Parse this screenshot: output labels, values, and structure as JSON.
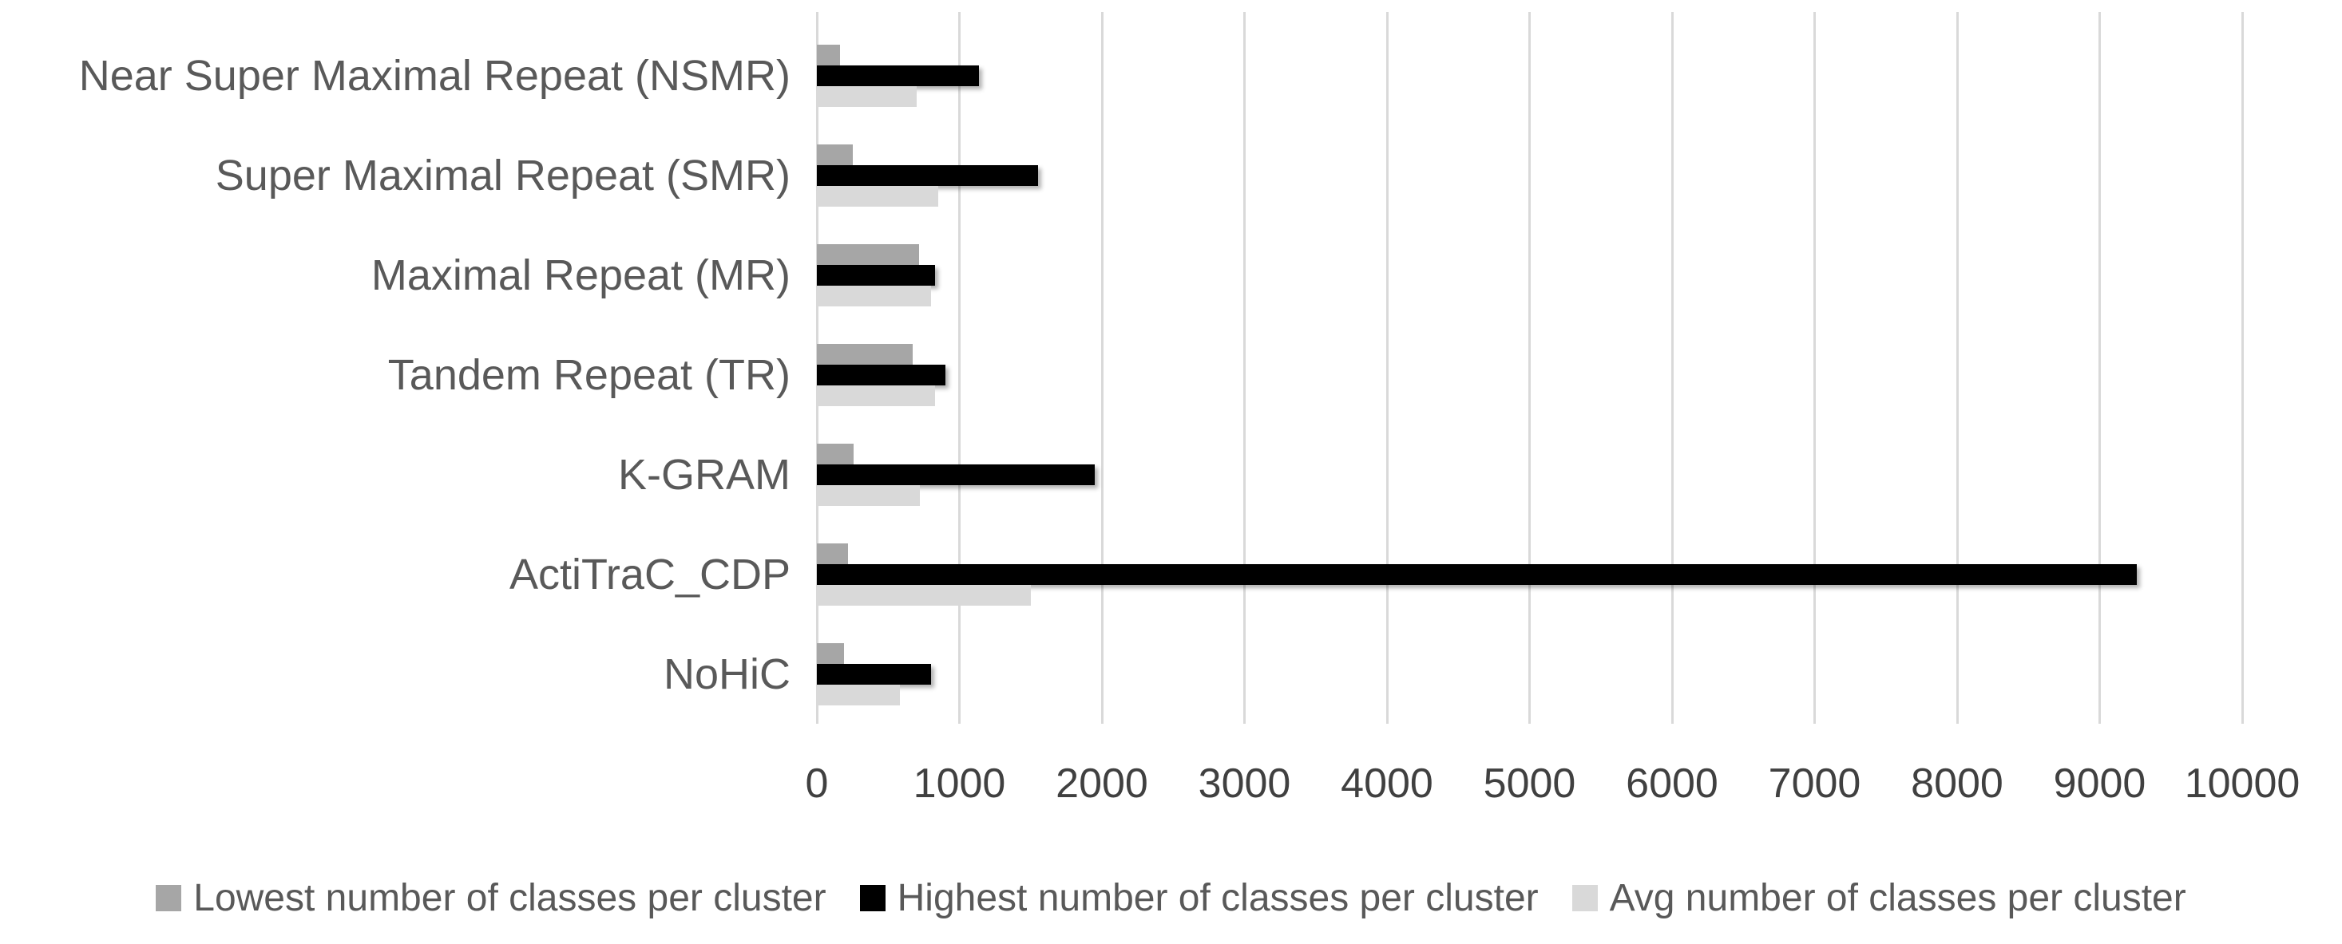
{
  "chart_data": {
    "type": "bar",
    "orientation": "horizontal",
    "title": "",
    "categories": [
      "Near Super Maximal Repeat (NSMR)",
      "Super Maximal Repeat (SMR)",
      "Maximal Repeat (MR)",
      "Tandem Repeat (TR)",
      "K-GRAM",
      "ActiTraC_CDP",
      "NoHiC"
    ],
    "series": [
      {
        "name": "Lowest number of classes per cluster",
        "color": "#a6a6a6",
        "values": [
          165,
          250,
          715,
          670,
          255,
          220,
          190
        ]
      },
      {
        "name": "Highest number of classes per cluster",
        "color": "#000000",
        "values": [
          1140,
          1550,
          830,
          900,
          1950,
          9260,
          800
        ]
      },
      {
        "name": "Avg number of classes per cluster",
        "color": "#d9d9d9",
        "values": [
          700,
          850,
          800,
          830,
          725,
          1500,
          580
        ]
      }
    ],
    "xlim": [
      0,
      10000
    ],
    "x_ticks": [
      "0",
      "1000",
      "2000",
      "3000",
      "4000",
      "5000",
      "6000",
      "7000",
      "8000",
      "9000",
      "10000"
    ],
    "grid": true,
    "legend_position": "bottom",
    "bar_order_top_to_bottom": [
      "Lowest number of classes per cluster",
      "Highest number of classes per cluster",
      "Avg number of classes per cluster"
    ]
  },
  "colors": {
    "background": "#ffffff",
    "gridline": "#d9d9d9",
    "axis_tick_text": "#404040",
    "category_label_text": "#595959",
    "legend_text": "#595959"
  }
}
